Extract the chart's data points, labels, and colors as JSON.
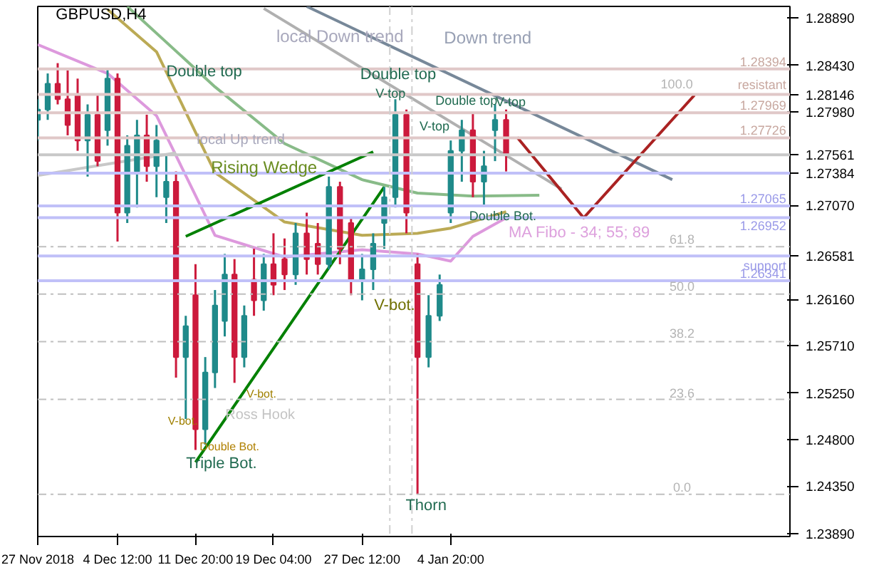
{
  "chart_data": {
    "type": "candlestick",
    "title": "GBPUSD,H4",
    "x": [
      "2018-11-27T00:00",
      "2018-11-27T22:30",
      "2018-11-28T21:00",
      "2018-11-29T19:30",
      "2018-11-30T18:00",
      "2018-12-01T16:30",
      "2018-12-02T15:00",
      "2018-12-03T13:30",
      "2018-12-04T12:00",
      "2018-12-05T10:00",
      "2018-12-06T08:00",
      "2018-12-07T06:00",
      "2018-12-08T04:00",
      "2018-12-09T02:00",
      "2018-12-10T00:00",
      "2018-12-10T22:00",
      "2018-12-11T20:00",
      "2018-12-12T18:00",
      "2018-12-13T16:00",
      "2018-12-14T14:00",
      "2018-12-15T12:00",
      "2018-12-16T10:00",
      "2018-12-17T08:00",
      "2018-12-18T06:00",
      "2018-12-19T04:00",
      "2018-12-20T05:00",
      "2018-12-21T06:00",
      "2018-12-22T07:00",
      "2018-12-23T08:00",
      "2018-12-24T09:00",
      "2018-12-25T10:00",
      "2018-12-26T11:00",
      "2018-12-27T12:00",
      "2018-12-28T13:00",
      "2018-12-29T14:00",
      "2018-12-30T15:00",
      "2018-12-31T16:00",
      "2019-01-01T17:00",
      "2019-01-02T18:00",
      "2019-01-03T19:00",
      "2019-01-04T20:00",
      "2019-01-05T21:00",
      "2019-01-06T22:00",
      "2019-01-07T23:00",
      "2019-01-09T00:00",
      "2019-01-10T01:00"
    ],
    "ohlc": [
      [
        1.279,
        1.281,
        1.277,
        1.28
      ],
      [
        1.28,
        1.2835,
        1.279,
        1.2825
      ],
      [
        1.2825,
        1.2845,
        1.2805,
        1.281
      ],
      [
        1.281,
        1.2838,
        1.2775,
        1.2785
      ],
      [
        1.2815,
        1.283,
        1.276,
        1.277
      ],
      [
        1.277,
        1.2805,
        1.2735,
        1.2795
      ],
      [
        1.2795,
        1.2815,
        1.2745,
        1.275
      ],
      [
        1.278,
        1.2839,
        1.2765,
        1.283
      ],
      [
        1.283,
        1.2835,
        1.2672,
        1.27
      ],
      [
        1.27,
        1.2775,
        1.269,
        1.2765
      ],
      [
        1.274,
        1.279,
        1.2705,
        1.2775
      ],
      [
        1.2775,
        1.2795,
        1.273,
        1.2745
      ],
      [
        1.2745,
        1.2785,
        1.2715,
        1.277
      ],
      [
        1.2715,
        1.2755,
        1.269,
        1.273
      ],
      [
        1.273,
        1.274,
        1.254,
        1.256
      ],
      [
        1.256,
        1.26,
        1.25,
        1.259
      ],
      [
        1.262,
        1.265,
        1.247,
        1.249
      ],
      [
        1.249,
        1.256,
        1.2475,
        1.2545
      ],
      [
        1.2545,
        1.2625,
        1.253,
        1.261
      ],
      [
        1.2595,
        1.266,
        1.258,
        1.264
      ],
      [
        1.264,
        1.2655,
        1.2535,
        1.256
      ],
      [
        1.256,
        1.261,
        1.255,
        1.26
      ],
      [
        1.2635,
        1.2665,
        1.26,
        1.2615
      ],
      [
        1.2615,
        1.266,
        1.2605,
        1.265
      ],
      [
        1.265,
        1.268,
        1.262,
        1.263
      ],
      [
        1.2655,
        1.2675,
        1.2625,
        1.264
      ],
      [
        1.264,
        1.269,
        1.263,
        1.268
      ],
      [
        1.268,
        1.27,
        1.264,
        1.2655
      ],
      [
        1.267,
        1.269,
        1.264,
        1.265
      ],
      [
        1.265,
        1.2735,
        1.2645,
        1.2725
      ],
      [
        1.2725,
        1.273,
        1.265,
        1.2665
      ],
      [
        1.269,
        1.2695,
        1.262,
        1.2635
      ],
      [
        1.2635,
        1.266,
        1.2615,
        1.2645
      ],
      [
        1.2645,
        1.268,
        1.2625,
        1.267
      ],
      [
        1.269,
        1.2725,
        1.2665,
        1.2715
      ],
      [
        1.2715,
        1.281,
        1.2705,
        1.2795
      ],
      [
        1.2795,
        1.28,
        1.268,
        1.27
      ],
      [
        1.265,
        1.266,
        1.2427,
        1.256
      ],
      [
        1.256,
        1.262,
        1.255,
        1.26
      ],
      [
        1.26,
        1.264,
        1.2595,
        1.263
      ],
      [
        1.27,
        1.277,
        1.269,
        1.276
      ],
      [
        1.276,
        1.279,
        1.273,
        1.278
      ],
      [
        1.278,
        1.2797,
        1.2715,
        1.273
      ],
      [
        1.273,
        1.276,
        1.2706,
        1.2745
      ],
      [
        1.278,
        1.2805,
        1.275,
        1.279
      ],
      [
        1.279,
        1.28,
        1.274,
        1.2756
      ]
    ],
    "colors": [
      "#1f8a8a",
      "#1f8a8a",
      "#cc1a3c",
      "#cc1a3c",
      "#cc1a3c",
      "#1f8a8a",
      "#cc1a3c",
      "#1f8a8a",
      "#cc1a3c",
      "#1f8a8a",
      "#1f8a8a",
      "#cc1a3c",
      "#1f8a8a",
      "#1f8a8a",
      "#cc1a3c",
      "#1f8a8a",
      "#cc1a3c",
      "#1f8a8a",
      "#1f8a8a",
      "#1f8a8a",
      "#cc1a3c",
      "#1f8a8a",
      "#cc1a3c",
      "#1f8a8a",
      "#cc1a3c",
      "#cc1a3c",
      "#1f8a8a",
      "#cc1a3c",
      "#cc1a3c",
      "#1f8a8a",
      "#cc1a3c",
      "#cc1a3c",
      "#1f8a8a",
      "#1f8a8a",
      "#1f8a8a",
      "#1f8a8a",
      "#cc1a3c",
      "#cc1a3c",
      "#1f8a8a",
      "#1f8a8a",
      "#1f8a8a",
      "#1f8a8a",
      "#cc1a3c",
      "#1f8a8a",
      "#1f8a8a",
      "#cc1a3c"
    ],
    "series": [
      {
        "type": "line",
        "color": "#dd99dd",
        "x": [
          "2018-11-27T00:00",
          "2018-12-03T13:30",
          "2018-12-08T04:00",
          "2018-12-13T16:00",
          "2018-12-20T05:00",
          "2018-12-27T12:00",
          "2019-01-01T17:00",
          "2019-01-04T20:00",
          "2019-01-06T22:00",
          "2019-01-10T01:00"
        ],
        "values": [
          1.2863,
          1.2835,
          1.2794,
          1.2678,
          1.2657,
          1.2664,
          1.266,
          1.2653,
          1.2677,
          1.2695
        ]
      },
      {
        "type": "line",
        "color": "#bbaa55",
        "x": [
          "2018-12-03T13:30",
          "2018-12-08T04:00",
          "2018-12-13T16:00",
          "2018-12-20T05:00",
          "2018-12-27T12:00",
          "2019-01-01T17:00",
          "2019-01-04T20:00",
          "2019-01-10T01:00"
        ],
        "values": [
          1.2897,
          1.2856,
          1.2739,
          1.2691,
          1.2678,
          1.268,
          1.2685,
          1.2701
        ]
      },
      {
        "type": "line",
        "color": "#88bb88",
        "x": [
          "2018-12-05T10:00",
          "2018-12-13T16:00",
          "2018-12-20T05:00",
          "2018-12-27T12:00",
          "2019-01-01T17:00",
          "2019-01-06T22:00",
          "2019-01-13T04:00"
        ],
        "values": [
          1.29,
          1.2822,
          1.2767,
          1.2732,
          1.2719,
          1.2716,
          1.2717
        ]
      },
      {
        "type": "line",
        "color": "#778899",
        "x": [
          "2018-12-22T07:00",
          "2019-01-25T16:00"
        ],
        "values": [
          1.29,
          1.2732
        ]
      },
      {
        "type": "line",
        "color": "#b0b0b0",
        "x": [
          "2018-12-18T06:00",
          "2019-01-15T06:00"
        ],
        "values": [
          1.2898,
          1.2723
        ]
      },
      {
        "type": "line",
        "color": "#c8c8c8",
        "x": [
          "2018-11-27T00:00",
          "2018-12-10T00:00"
        ],
        "values": [
          1.2736,
          1.2758
        ]
      },
      {
        "type": "line",
        "color": "#008000",
        "x": [
          "2018-12-10T22:00",
          "2018-12-28T13:00"
        ],
        "values": [
          1.2677,
          1.2759
        ]
      },
      {
        "type": "line",
        "color": "#008000",
        "x": [
          "2018-12-11T20:00",
          "2018-12-29T14:00"
        ],
        "values": [
          1.2458,
          1.2725
        ]
      },
      {
        "type": "line",
        "color": "#aa2222",
        "x": [
          "2019-01-11T02:00",
          "2019-01-17T08:00",
          "2019-01-27T18:00"
        ],
        "values": [
          1.2773,
          1.2695,
          1.2814
        ]
      }
    ],
    "xlim": [
      "2018-11-27T00:00",
      "2019-02-05T17:30"
    ],
    "ylim": [
      1.2386,
      1.29
    ],
    "xticks": [
      {
        "value": "2018-11-27T00:00",
        "label": "27 Nov 2018"
      },
      {
        "value": "2018-12-04T12:00",
        "label": "4 Dec 12:00"
      },
      {
        "value": "2018-12-11T20:00",
        "label": "11 Dec 20:00"
      },
      {
        "value": "2018-12-19T04:00",
        "label": "19 Dec 04:00"
      },
      {
        "value": "2018-12-27T12:00",
        "label": "27 Dec 12:00"
      },
      {
        "value": "2019-01-04T20:00",
        "label": "4 Jan 20:00"
      }
    ],
    "yticks": [
      {
        "value": 1.2889,
        "label": "1.28890"
      },
      {
        "value": 1.2843,
        "label": "1.28430"
      },
      {
        "value": 1.28146,
        "label": "1.28146"
      },
      {
        "value": 1.2798,
        "label": "1.27980"
      },
      {
        "value": 1.27561,
        "label": "1.27561"
      },
      {
        "value": 1.27384,
        "label": "1.27384"
      },
      {
        "value": 1.2707,
        "label": "1.27070"
      },
      {
        "value": 1.26581,
        "label": "1.26581"
      },
      {
        "value": 1.2616,
        "label": "1.26160"
      },
      {
        "value": 1.2571,
        "label": "1.25710"
      },
      {
        "value": 1.2525,
        "label": "1.25250"
      },
      {
        "value": 1.248,
        "label": "1.24800"
      },
      {
        "value": 1.2435,
        "label": "1.24350"
      },
      {
        "value": 1.2389,
        "label": "1.23890"
      }
    ],
    "ref_lines": [
      {
        "axis": "y",
        "value": 1.28394,
        "label": "1.28394",
        "color": "#e0c8c8"
      },
      {
        "axis": "y",
        "value": 1.28146,
        "label": "resistant",
        "color": "#e0c8c8"
      },
      {
        "axis": "y",
        "value": 1.27969,
        "label": "1.27969",
        "color": "#e0c8c8"
      },
      {
        "axis": "y",
        "value": 1.27726,
        "label": "1.27726",
        "color": "#e0c8c8"
      },
      {
        "axis": "y",
        "value": 1.27561,
        "label": null,
        "color": "#c8c8c8"
      },
      {
        "axis": "y",
        "value": 1.27384,
        "label": null,
        "color": "#c0c0f8"
      },
      {
        "axis": "y",
        "value": 1.27065,
        "label": "1.27065",
        "color": "#c0c0f8"
      },
      {
        "axis": "y",
        "value": 1.26952,
        "label": "1.26952",
        "color": "#c0c0f8"
      },
      {
        "axis": "y",
        "value": 1.26581,
        "label": "support",
        "color": "#c0c0f8"
      },
      {
        "axis": "y",
        "value": 1.26341,
        "label": "1.26341",
        "color": "#c0c0f8"
      },
      {
        "axis": "y",
        "value": 1.2667,
        "label": null,
        "color": "#c0c0c0",
        "line_style": "dashed"
      },
      {
        "axis": "y",
        "value": 1.2621,
        "label": null,
        "color": "#c0c0c0",
        "line_style": "dashed"
      },
      {
        "axis": "y",
        "value": 1.2575,
        "label": null,
        "color": "#c0c0c0",
        "line_style": "dashed"
      },
      {
        "axis": "y",
        "value": 1.2519,
        "label": null,
        "color": "#c0c0c0",
        "line_style": "dashed"
      },
      {
        "axis": "y",
        "value": 1.2427,
        "label": null,
        "color": "#c0c0c0",
        "line_style": "dashed"
      },
      {
        "axis": "x",
        "value": "2018-12-30T02:30",
        "label": null,
        "color": "#d0d0d0",
        "line_style": "dashed"
      },
      {
        "axis": "x",
        "value": "2019-01-01T04:30",
        "label": null,
        "color": "#d0d0d0",
        "line_style": "dashed"
      }
    ],
    "annotations": [
      "local Down trend",
      "Down trend",
      "Double top",
      {
        "text": "Double top",
        "x": "2018-12-30T15:00",
        "y": 1.281
      },
      "V-top",
      "Double top",
      {
        "text": "V-top",
        "x": "2019-01-09T00:00",
        "y": 1.2805
      },
      "V-top",
      "local  Up trend",
      "Rising Wedge",
      {
        "text": "Double Bot.",
        "x": "2019-01-06T22:00",
        "y": 1.2715
      },
      "MA Fibo - 34; 55; 89",
      "V-bot.",
      "V-bot.",
      "V-bot.",
      "Ross Hook",
      "Double Bot.",
      "Triple Bot.",
      {
        "text": "Thorn",
        "x": "2019-01-01T17:00",
        "y": 1.2427
      },
      "100.0",
      "61.8",
      "50.0",
      "38.2",
      "23.6",
      "0.0"
    ],
    "grid": false
  }
}
